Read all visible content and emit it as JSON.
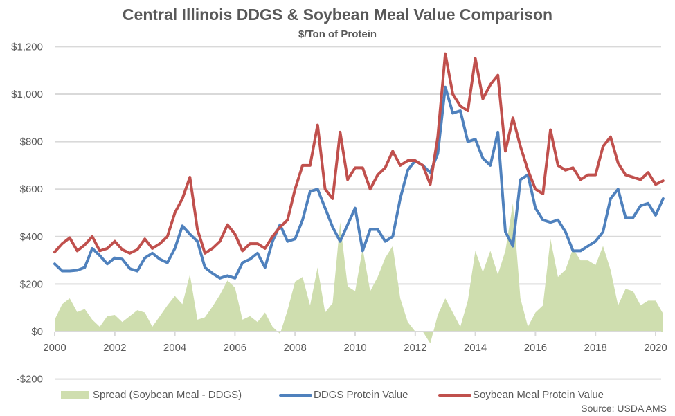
{
  "chart_data": {
    "type": "line",
    "title": "Central Illinois DDGS & Soybean Meal Value Comparison",
    "subtitle": "$/Ton of Protein",
    "xlabel": "",
    "ylabel": "",
    "xlim": [
      2000,
      2020.25
    ],
    "ylim": [
      -200,
      1200
    ],
    "x_ticks": [
      "2000",
      "2002",
      "2004",
      "2006",
      "2008",
      "2010",
      "2012",
      "2014",
      "2016",
      "2018",
      "2020"
    ],
    "y_ticks": [
      "$1,200",
      "$1,000",
      "$800",
      "$600",
      "$400",
      "$200",
      "$0",
      "-$200"
    ],
    "grid": true,
    "legend_position": "bottom",
    "x_start": 2000,
    "x_step": 0.25,
    "series": [
      {
        "name": "Spread (Soybean Meal - DDGS)",
        "type": "area",
        "color": "#cfdeaf",
        "derived": "Soybean Meal Protein Value - DDGS Protein Value"
      },
      {
        "name": "DDGS Protein Value",
        "type": "line",
        "color": "#4f81bd",
        "values": [
          285,
          255,
          255,
          258,
          270,
          350,
          320,
          285,
          310,
          305,
          265,
          255,
          310,
          330,
          305,
          290,
          350,
          445,
          410,
          380,
          270,
          245,
          225,
          235,
          225,
          290,
          305,
          330,
          270,
          380,
          450,
          380,
          390,
          470,
          590,
          600,
          520,
          440,
          380,
          450,
          520,
          340,
          430,
          430,
          380,
          400,
          560,
          680,
          720,
          700,
          670,
          750,
          1030,
          920,
          930,
          800,
          810,
          730,
          700,
          840,
          420,
          360,
          640,
          660,
          520,
          470,
          460,
          470,
          420,
          340,
          340,
          360,
          380,
          420,
          560,
          600,
          480,
          480,
          530,
          540,
          490,
          560
        ]
      },
      {
        "name": "Soybean Meal Protein Value",
        "type": "line",
        "color": "#c0504d",
        "values": [
          335,
          370,
          395,
          340,
          365,
          400,
          340,
          350,
          380,
          345,
          330,
          345,
          390,
          350,
          370,
          400,
          500,
          560,
          650,
          430,
          330,
          350,
          380,
          450,
          410,
          340,
          370,
          370,
          350,
          400,
          440,
          470,
          600,
          700,
          700,
          870,
          600,
          560,
          840,
          640,
          690,
          690,
          600,
          660,
          690,
          760,
          700,
          720,
          720,
          700,
          620,
          820,
          1170,
          1000,
          950,
          930,
          1150,
          980,
          1040,
          1080,
          760,
          900,
          780,
          680,
          600,
          580,
          850,
          700,
          680,
          690,
          640,
          660,
          660,
          780,
          820,
          710,
          660,
          650,
          640,
          670,
          620,
          635
        ]
      }
    ],
    "source": "Source: USDA AMS"
  },
  "legend": {
    "spread": "Spread (Soybean Meal - DDGS)",
    "ddgs": "DDGS Protein Value",
    "soy": "Soybean Meal Protein Value"
  }
}
